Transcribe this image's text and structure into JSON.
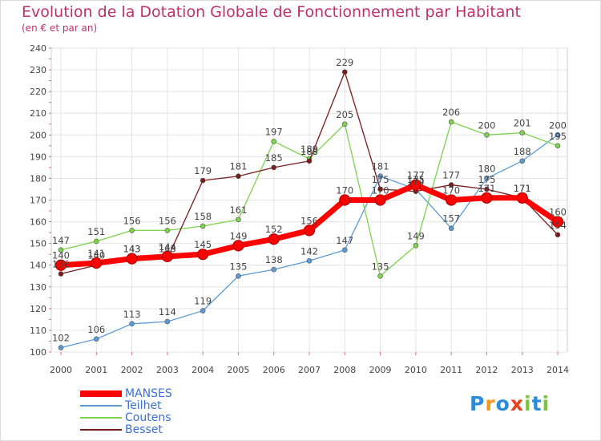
{
  "chart_data": {
    "type": "line",
    "title": "Evolution de la Dotation Globale de Fonctionnement par Habitant",
    "subtitle": "(en € et par an)",
    "xlabel": "",
    "ylabel": "",
    "ylim": [
      100,
      240
    ],
    "yticks": [
      100,
      110,
      120,
      130,
      140,
      150,
      160,
      170,
      180,
      190,
      200,
      210,
      220,
      230,
      240
    ],
    "categories": [
      "2000",
      "2001",
      "2002",
      "2003",
      "2004",
      "2005",
      "2006",
      "2007",
      "2008",
      "2009",
      "2010",
      "2011",
      "2012",
      "2013",
      "2014"
    ],
    "grid": true,
    "legend_position": "bottom-left",
    "series": [
      {
        "name": "MANSES",
        "color": "#ff0000",
        "values": [
          140,
          141,
          143,
          144,
          145,
          149,
          152,
          156,
          170,
          170,
          177,
          170,
          171,
          171,
          160
        ]
      },
      {
        "name": "Teilhet",
        "color": "#5b9bd5",
        "values": [
          102,
          106,
          113,
          114,
          119,
          135,
          138,
          142,
          147,
          181,
          175,
          157,
          180,
          188,
          200
        ]
      },
      {
        "name": "Coutens",
        "color": "#7dd34a",
        "values": [
          147,
          151,
          156,
          156,
          158,
          161,
          197,
          189,
          205,
          135,
          149,
          206,
          200,
          201,
          195
        ]
      },
      {
        "name": "Besset",
        "color": "#7a1a1a",
        "values": [
          136,
          140,
          143,
          143,
          179,
          181,
          185,
          188,
          229,
          175,
          174,
          177,
          175,
          171,
          154
        ]
      }
    ]
  },
  "brand": {
    "text": "Proxiti",
    "letters": [
      "P",
      "r",
      "o",
      "x",
      "i",
      "t",
      "i"
    ],
    "colors": [
      "#2e8bd8",
      "#f29a1e",
      "#2e8bd8",
      "#e8401c",
      "#7dc242",
      "#2e8bd8",
      "#7dc242"
    ]
  }
}
